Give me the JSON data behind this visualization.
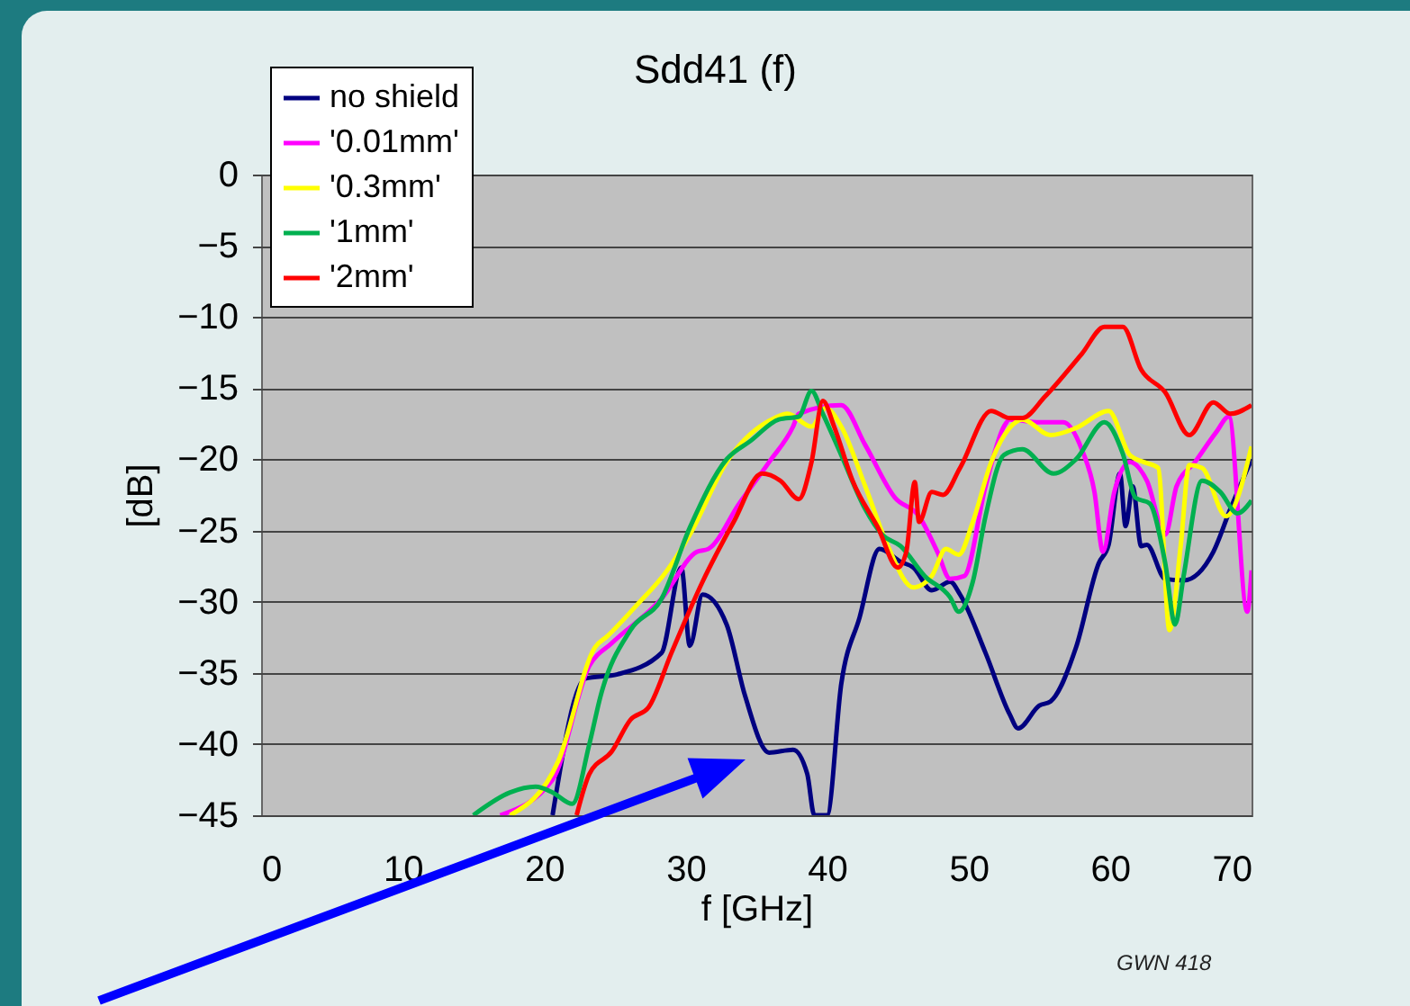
{
  "chart_data": {
    "type": "line",
    "title": "Sdd41 (f)",
    "xlabel": "f [GHz]",
    "ylabel": "[dB]",
    "xlim": [
      0,
      70
    ],
    "ylim": [
      -45,
      0
    ],
    "xticks": [
      0,
      10,
      20,
      30,
      40,
      50,
      60,
      70
    ],
    "yticks": [
      0,
      -5,
      -10,
      -15,
      -20,
      -25,
      -30,
      -35,
      -40,
      -45
    ],
    "grid": "y",
    "legend": "top left",
    "annotations": [
      "GWN 418"
    ],
    "series": [
      {
        "name": "no shield",
        "color": "#000080",
        "x": [
          20.6,
          22.9,
          25.2,
          28.3,
          29.7,
          30.3,
          31.2,
          32.9,
          34.2,
          35.9,
          37.6,
          38.6,
          39.1,
          40.0,
          41.0,
          42.3,
          43.7,
          45.2,
          46.1,
          47.4,
          48.7,
          49.4,
          51.2,
          52.9,
          53.5,
          55.0,
          55.8,
          57.6,
          59.2,
          59.9,
          60.7,
          61.1,
          61.6,
          62.2,
          62.6,
          63.9,
          65.2,
          67.3,
          68.5,
          70
        ],
        "values": [
          -45,
          -35.4,
          -35.1,
          -33.6,
          -27.6,
          -33.1,
          -29.5,
          -31.6,
          -36.6,
          -40.6,
          -40.4,
          -42.1,
          -45,
          -45,
          -35.8,
          -31.1,
          -26.3,
          -27.2,
          -27.6,
          -29.2,
          -28.6,
          -29.5,
          -33.6,
          -37.9,
          -38.9,
          -37.3,
          -37,
          -33.2,
          -27.3,
          -26,
          -21,
          -24.7,
          -21.9,
          -26.1,
          -26,
          -28.4,
          -28.5,
          -26.5,
          -23.5,
          -20
        ]
      },
      {
        "name": "'0.01mm'",
        "color": "#ff00ff",
        "x": [
          16.9,
          20.6,
          23.2,
          24.8,
          28.3,
          30.8,
          31.6,
          33.8,
          35.9,
          37.6,
          38,
          41,
          42.7,
          44.8,
          46.5,
          47.8,
          48.7,
          49.7,
          51.2,
          52.5,
          52.9,
          55,
          56.7,
          58,
          58.9,
          59.5,
          60.3,
          61.4,
          62.6,
          63.9,
          64.7,
          66,
          67.5,
          68.4,
          69.7,
          70
        ],
        "values": [
          -45,
          -42.5,
          -34.5,
          -32.9,
          -29.8,
          -26.5,
          -26.3,
          -23.1,
          -20.2,
          -17.7,
          -16.8,
          -16.2,
          -19,
          -22.7,
          -24,
          -26.5,
          -28.4,
          -28.2,
          -21.9,
          -17.7,
          -17.2,
          -17.4,
          -17.4,
          -19.3,
          -22.3,
          -26.5,
          -22.3,
          -20.2,
          -21.5,
          -25.3,
          -21.9,
          -20.2,
          -18.1,
          -17,
          -30.7,
          -27.8
        ]
      },
      {
        "name": "'0.3mm'",
        "color": "#ffff00",
        "x": [
          17.6,
          21,
          23.6,
          24.5,
          26.5,
          28.7,
          30.3,
          32.9,
          36.3,
          37.2,
          38.9,
          39.9,
          41,
          42.7,
          44.3,
          46.1,
          47.4,
          48.4,
          49.3,
          50.3,
          51.6,
          52.9,
          53.8,
          55.8,
          57.6,
          59.9,
          61.4,
          62.4,
          63.4,
          64.2,
          65,
          65.6,
          66.5,
          68.2,
          70
        ],
        "values": [
          -45,
          -41.2,
          -33.2,
          -32.4,
          -30.3,
          -27.8,
          -25.3,
          -20.2,
          -17.1,
          -16.8,
          -17.7,
          -16.4,
          -17.7,
          -21.9,
          -26.1,
          -29,
          -28.2,
          -26.3,
          -26.7,
          -24.4,
          -20.2,
          -17.8,
          -17.2,
          -18.3,
          -17.8,
          -16.6,
          -19.7,
          -20.2,
          -20.6,
          -32,
          -26,
          -20.4,
          -20.6,
          -24,
          -19.1
        ]
      },
      {
        "name": "'1mm'",
        "color": "#00b050",
        "x": [
          15,
          17.6,
          19.4,
          20.6,
          22,
          23.2,
          24,
          26.1,
          28.3,
          30.3,
          32.9,
          34.6,
          36.6,
          38,
          38.9,
          39.7,
          41,
          42.7,
          43.9,
          45.2,
          46.9,
          48.7,
          49.3,
          50.3,
          51.2,
          52.5,
          53.8,
          56,
          57.6,
          59.6,
          60.9,
          61.8,
          62.8,
          63.9,
          64.6,
          65.2,
          66.5,
          67.8,
          69,
          70
        ],
        "values": [
          -45,
          -43.4,
          -43,
          -43.4,
          -44.2,
          -40,
          -36.6,
          -32,
          -29.8,
          -24.8,
          -20,
          -18.7,
          -17.2,
          -17,
          -15.2,
          -16.8,
          -19.7,
          -23.5,
          -25.3,
          -26.1,
          -28.2,
          -29.7,
          -30.7,
          -28.6,
          -24,
          -19.7,
          -19.3,
          -21,
          -20,
          -17.4,
          -19.6,
          -22.7,
          -23.1,
          -27.3,
          -31.6,
          -28.2,
          -21.5,
          -22.3,
          -23.8,
          -22.9
        ]
      },
      {
        "name": "'2mm'",
        "color": "#ff0000",
        "x": [
          22.3,
          23.2,
          24.8,
          26.1,
          27.4,
          29,
          31.2,
          33.4,
          35.4,
          36.7,
          38,
          38.9,
          39.7,
          40.5,
          41.8,
          43.6,
          45,
          45.6,
          46.2,
          46.5,
          47.4,
          48.2,
          49.4,
          51.6,
          52.9,
          53.8,
          55.4,
          58,
          59.6,
          60.9,
          62.2,
          63.9,
          65.6,
          67.3,
          68.5,
          70
        ],
        "values": [
          -45,
          -42.1,
          -40.5,
          -38.3,
          -37.4,
          -33.6,
          -28.6,
          -24.4,
          -21,
          -21.5,
          -22.8,
          -20.2,
          -15.9,
          -17.7,
          -21.5,
          -24.8,
          -27.6,
          -26.5,
          -21.6,
          -24.4,
          -22.3,
          -22.5,
          -20.6,
          -16.6,
          -17.1,
          -17.1,
          -15.6,
          -12.6,
          -10.7,
          -10.7,
          -13.7,
          -15.3,
          -18.3,
          -16,
          -16.8,
          -16.2
        ]
      }
    ]
  }
}
